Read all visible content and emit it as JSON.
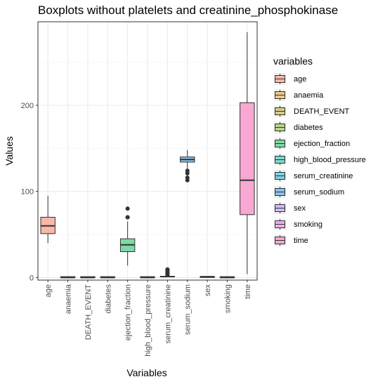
{
  "chart_data": {
    "type": "boxplot",
    "title": "Boxplots without platelets and creatinine_phosphokinase",
    "xlabel": "Variables",
    "ylabel": "Values",
    "ylim": [
      -3,
      297
    ],
    "yticks": [
      0,
      100,
      200
    ],
    "grid": true,
    "legend_title": "variables",
    "legend_position": "right",
    "categories": [
      {
        "name": "age",
        "min": 40,
        "q1": 51,
        "median": 60,
        "q3": 70,
        "max": 95,
        "outliers": [],
        "color": "#F8B7A9"
      },
      {
        "name": "anaemia",
        "min": 0,
        "q1": 0,
        "median": 0,
        "q3": 1,
        "max": 1,
        "outliers": [],
        "color": "#E9CB86"
      },
      {
        "name": "DEATH_EVENT",
        "min": 0,
        "q1": 0,
        "median": 0,
        "q3": 1,
        "max": 1,
        "outliers": [],
        "color": "#D4CF86"
      },
      {
        "name": "diabetes",
        "min": 0,
        "q1": 0,
        "median": 0,
        "q3": 1,
        "max": 1,
        "outliers": [],
        "color": "#B4D98A"
      },
      {
        "name": "ejection_fraction",
        "min": 14,
        "q1": 30,
        "median": 38,
        "q3": 45,
        "max": 65,
        "outliers": [
          70,
          70,
          80
        ],
        "color": "#7FD9A6"
      },
      {
        "name": "high_blood_pressure",
        "min": 0,
        "q1": 0,
        "median": 0,
        "q3": 1,
        "max": 1,
        "outliers": [],
        "color": "#7ED8C9"
      },
      {
        "name": "serum_creatinine",
        "min": 0.5,
        "q1": 0.9,
        "median": 1.1,
        "q3": 1.4,
        "max": 2.1,
        "outliers": [
          2.7,
          3.5,
          4.4,
          5.0,
          6.1,
          6.8,
          8.0,
          9.0,
          9.4
        ],
        "color": "#7BD3E6"
      },
      {
        "name": "serum_sodium",
        "min": 125,
        "q1": 134,
        "median": 137,
        "q3": 140,
        "max": 148,
        "outliers": [
          113,
          116,
          121,
          124
        ],
        "color": "#86C4F2"
      },
      {
        "name": "sex",
        "min": 0,
        "q1": 0,
        "median": 1,
        "q3": 1,
        "max": 1,
        "outliers": [],
        "color": "#CFBCFA"
      },
      {
        "name": "smoking",
        "min": 0,
        "q1": 0,
        "median": 0,
        "q3": 1,
        "max": 1,
        "outliers": [],
        "color": "#EFAEEE"
      },
      {
        "name": "time",
        "min": 4,
        "q1": 73,
        "median": 113,
        "q3": 203,
        "max": 285,
        "outliers": [],
        "color": "#F8A8D2"
      }
    ]
  }
}
